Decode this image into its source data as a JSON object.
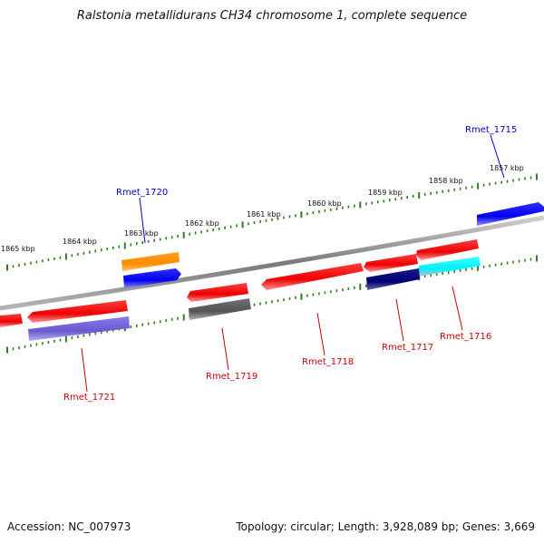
{
  "title": "Ralstonia metallidurans CH34 chromosome 1, complete sequence",
  "footer": {
    "accession": "Accession: NC_007973",
    "summary": "Topology: circular; Length: 3,928,089 bp; Genes: 3,669"
  },
  "kbp_ticks": [
    {
      "label": "1857 kbp"
    },
    {
      "label": "1858 kbp"
    },
    {
      "label": "1859 kbp"
    },
    {
      "label": "1860 kbp"
    },
    {
      "label": "1861 kbp"
    },
    {
      "label": "1862 kbp"
    },
    {
      "label": "1863 kbp"
    },
    {
      "label": "1864 kbp"
    },
    {
      "label": "1865 kbp"
    }
  ],
  "genes": [
    {
      "label": "Rmet_1715",
      "color": "#0000cc"
    },
    {
      "label": "Rmet_1716",
      "color": "#cc0000"
    },
    {
      "label": "Rmet_1717",
      "color": "#cc0000"
    },
    {
      "label": "Rmet_1718",
      "color": "#cc0000"
    },
    {
      "label": "Rmet_1719",
      "color": "#cc0000"
    },
    {
      "label": "Rmet_1720",
      "color": "#0000cc"
    },
    {
      "label": "Rmet_1721",
      "color": "#cc0000"
    }
  ],
  "colors": {
    "backbone": "#888888",
    "tick": "#2e7d1e",
    "gene_red": "#ff0000",
    "gene_blue": "#0000ee",
    "gene_orange": "#ff8c00",
    "gene_navy": "#000080",
    "gene_cyan": "#00ffff",
    "gene_gray": "#666666",
    "gene_purple": "#7b68ee"
  }
}
